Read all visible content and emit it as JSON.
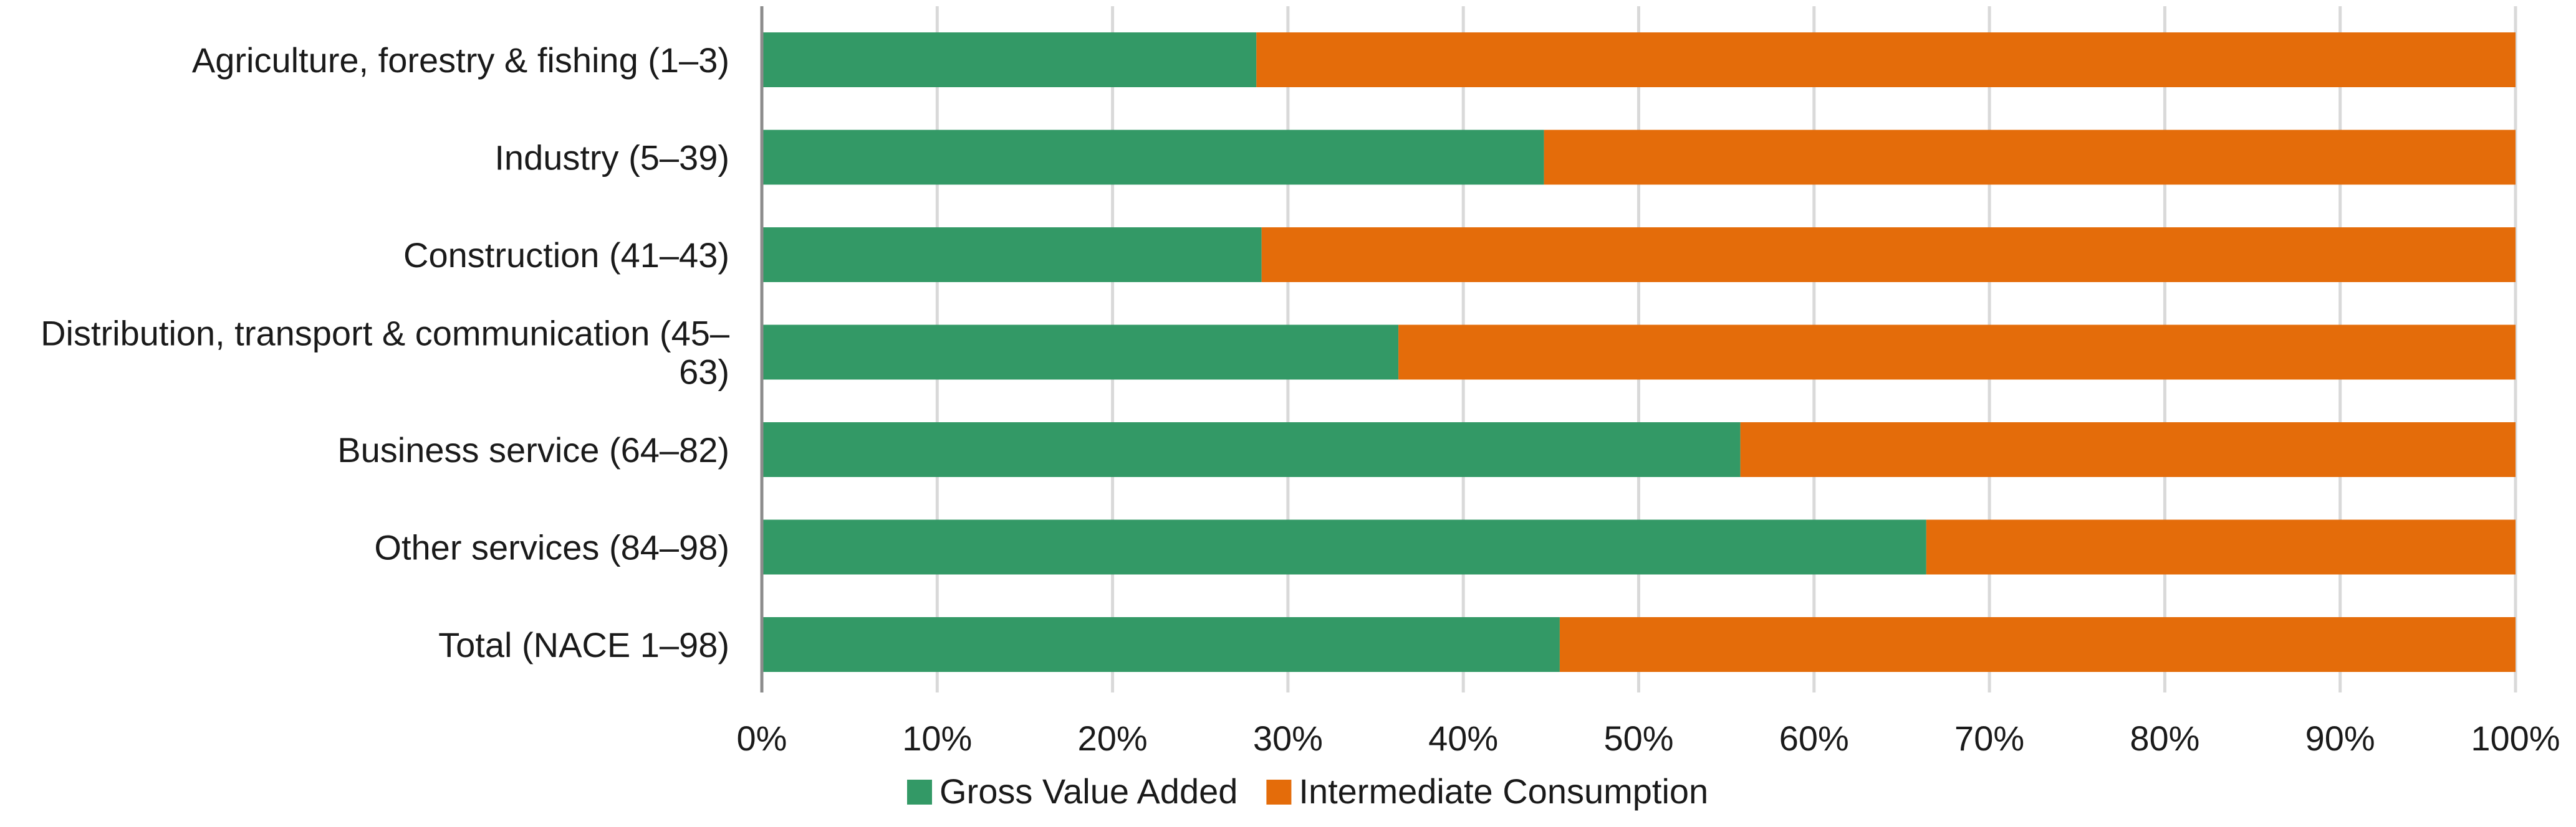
{
  "chart_data": {
    "type": "bar",
    "orientation": "horizontal",
    "stacked": "100%",
    "title": "",
    "xlabel": "",
    "ylabel": "",
    "xlim": [
      0,
      100
    ],
    "x_ticks": [
      "0%",
      "10%",
      "20%",
      "30%",
      "40%",
      "50%",
      "60%",
      "70%",
      "80%",
      "90%",
      "100%"
    ],
    "grid": "vertical",
    "legend_position": "bottom",
    "categories": [
      [
        "Agriculture, forestry & fishing (1–3)"
      ],
      [
        "Industry (5–39)"
      ],
      [
        "Construction (41–43)"
      ],
      [
        "Distribution, transport & communication (45–",
        "63)"
      ],
      [
        "Business service (64–82)"
      ],
      [
        "Other services (84–98)"
      ],
      [
        "Total (NACE 1–98)"
      ]
    ],
    "series": [
      {
        "name": "Gross Value Added",
        "color": "#339966",
        "values": [
          28.2,
          44.6,
          28.5,
          36.3,
          55.8,
          66.4,
          45.5
        ]
      },
      {
        "name": "Intermediate Consumption",
        "color": "#E46C0A",
        "values": [
          71.8,
          55.4,
          71.5,
          63.7,
          44.2,
          33.6,
          54.5
        ]
      }
    ]
  }
}
